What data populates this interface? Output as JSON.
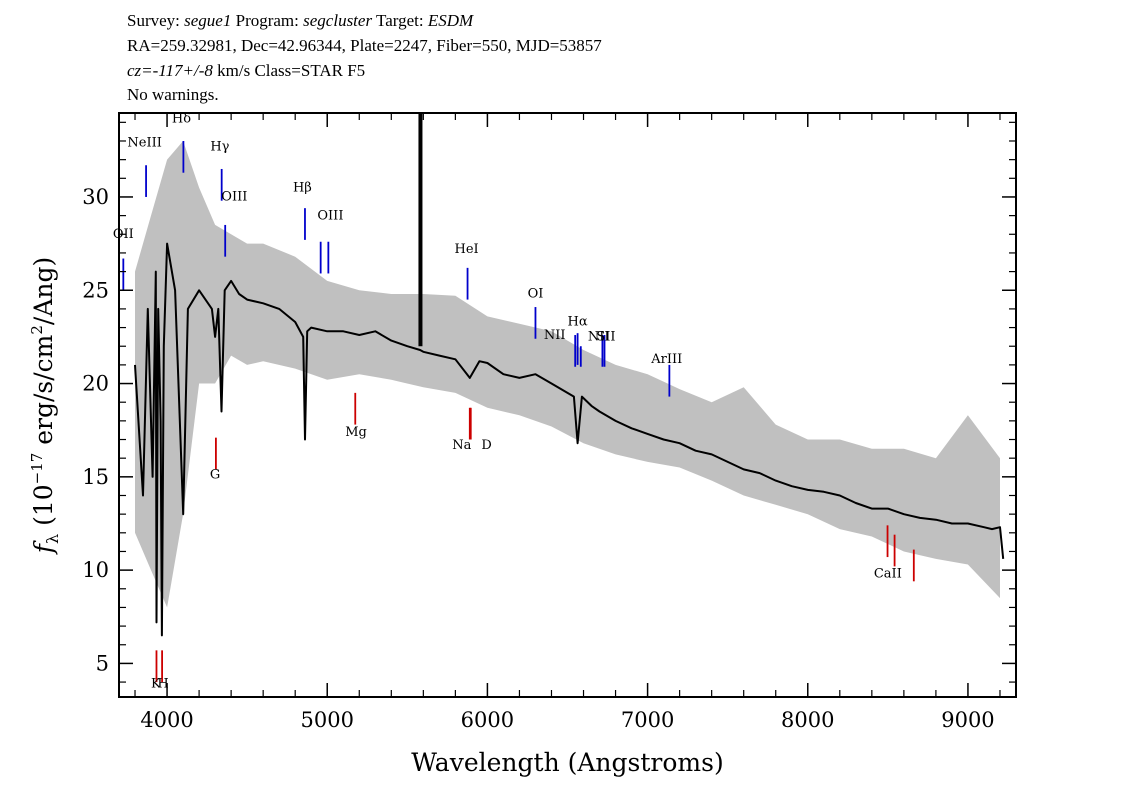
{
  "header": {
    "line1": [
      {
        "text": "Survey: ",
        "italic": false
      },
      {
        "text": "segue1",
        "italic": true
      },
      {
        "text": " Program: ",
        "italic": false
      },
      {
        "text": "segcluster",
        "italic": true
      },
      {
        "text": " Target: ",
        "italic": false
      },
      {
        "text": "ESDM",
        "italic": true
      }
    ],
    "line2": "RA=259.32981, Dec=42.96344, Plate=2247, Fiber=550, MJD=53857",
    "line3": [
      {
        "text": "cz=-117+/-8",
        "italic": true
      },
      {
        "text": " km/s Class=STAR F5",
        "italic": false
      }
    ],
    "line4": "No warnings."
  },
  "chart_data": {
    "type": "line",
    "xlabel": "Wavelength (Angstroms)",
    "ylabel": "f_λ (10^-17 erg/s/cm^2/Ang)",
    "xlim": [
      3700,
      9300
    ],
    "ylim": [
      3.2,
      34.5
    ],
    "xticks": [
      4000,
      5000,
      6000,
      7000,
      8000,
      9000
    ],
    "yticks": [
      5,
      10,
      15,
      20,
      25,
      30
    ],
    "colors": {
      "spectrum": "#000000",
      "noise": "#c0c0c0",
      "emission": "#0000cc",
      "absorption": "#cc0000"
    },
    "series": [
      {
        "kind": "spectrum",
        "x": [
          3800,
          3850,
          3880,
          3910,
          3930,
          3934,
          3945,
          3960,
          3968,
          3980,
          4000,
          4050,
          4101,
          4130,
          4200,
          4280,
          4300,
          4320,
          4340,
          4360,
          4400,
          4450,
          4500,
          4600,
          4700,
          4800,
          4850,
          4861,
          4875,
          4900,
          5000,
          5100,
          5200,
          5300,
          5400,
          5500,
          5580,
          5600,
          5700,
          5800,
          5890,
          5950,
          6000,
          6100,
          6200,
          6300,
          6400,
          6500,
          6540,
          6563,
          6590,
          6650,
          6700,
          6800,
          6900,
          7000,
          7100,
          7200,
          7300,
          7400,
          7500,
          7600,
          7700,
          7800,
          7900,
          8000,
          8100,
          8200,
          8300,
          8400,
          8500,
          8600,
          8700,
          8800,
          8900,
          9000,
          9100,
          9150,
          9200,
          9220
        ],
        "y": [
          21,
          14,
          24,
          15,
          26,
          7.2,
          24,
          18,
          6.5,
          22,
          27.5,
          25,
          13,
          24,
          25,
          24,
          22.5,
          24,
          18.5,
          25,
          25.5,
          24.8,
          24.5,
          24.3,
          24,
          23.3,
          22.5,
          17,
          22.8,
          23,
          22.8,
          22.8,
          22.6,
          22.8,
          22.3,
          22,
          21.8,
          21.7,
          21.5,
          21.3,
          20.3,
          21.2,
          21.1,
          20.5,
          20.3,
          20.5,
          20,
          19.5,
          19.3,
          16.8,
          19.3,
          18.8,
          18.5,
          18,
          17.6,
          17.3,
          17,
          16.8,
          16.4,
          16.2,
          15.8,
          15.4,
          15.2,
          14.8,
          14.5,
          14.3,
          14.2,
          14,
          13.6,
          13.3,
          13.3,
          13,
          12.8,
          12.7,
          12.5,
          12.5,
          12.3,
          12.2,
          12.3,
          10.6
        ]
      },
      {
        "kind": "noise",
        "x": [
          3800,
          3900,
          4000,
          4100,
          4200,
          4300,
          4400,
          4500,
          4600,
          4800,
          5000,
          5200,
          5400,
          5600,
          5800,
          6000,
          6200,
          6400,
          6600,
          6800,
          7000,
          7200,
          7400,
          7600,
          7800,
          8000,
          8200,
          8400,
          8600,
          8800,
          9000,
          9200
        ],
        "upper": [
          26,
          29,
          32,
          33,
          30.5,
          28.5,
          28,
          27.5,
          27.5,
          26.8,
          25.5,
          25,
          24.8,
          24.8,
          24.7,
          23.6,
          23.2,
          22.8,
          21.8,
          21,
          20.5,
          19.7,
          19,
          19.8,
          17.8,
          17,
          17,
          16.5,
          16.5,
          16,
          18.3,
          16
        ],
        "lower": [
          12,
          10,
          8,
          13,
          20,
          20,
          21.5,
          21,
          21.2,
          20.8,
          20.2,
          20.5,
          20.2,
          19.8,
          19.5,
          18.7,
          18.3,
          17.7,
          16.8,
          16.2,
          15.8,
          15.5,
          14.8,
          14,
          13.5,
          13,
          12.2,
          11.8,
          11,
          10.6,
          10.3,
          8.5
        ]
      }
    ],
    "emission_lines": [
      {
        "label": "OII",
        "x": 3727,
        "y0": 25.0,
        "y1": 26.7,
        "tx": 3727,
        "ty": 27.8
      },
      {
        "label": "NeIII",
        "x": 3869,
        "y0": 30.0,
        "y1": 31.7,
        "tx": 3860,
        "ty": 32.7
      },
      {
        "label": "Hδ",
        "x": 4102,
        "y0": 31.3,
        "y1": 33.0,
        "tx": 4090,
        "ty": 34.0
      },
      {
        "label": "Hγ",
        "x": 4341,
        "y0": 29.8,
        "y1": 31.5,
        "tx": 4330,
        "ty": 32.5
      },
      {
        "label": "OIII",
        "x": 4363,
        "y0": 26.8,
        "y1": 28.5,
        "tx": 4420,
        "ty": 29.8
      },
      {
        "label": "Hβ",
        "x": 4861,
        "y0": 27.7,
        "y1": 29.4,
        "tx": 4845,
        "ty": 30.3
      },
      {
        "label": "OIII",
        "x": 4959,
        "y0": 25.9,
        "y1": 27.6,
        "tx": 5020,
        "ty": 28.8
      },
      {
        "label": "",
        "x": 5007,
        "y0": 25.9,
        "y1": 27.6,
        "tx": 5007,
        "ty": 28.8
      },
      {
        "label": "HeI",
        "x": 5876,
        "y0": 24.5,
        "y1": 26.2,
        "tx": 5870,
        "ty": 27.0
      },
      {
        "label": "OI",
        "x": 6300,
        "y0": 22.4,
        "y1": 24.1,
        "tx": 6300,
        "ty": 24.6
      },
      {
        "label": "NII",
        "x": 6548,
        "y0": 20.9,
        "y1": 22.6,
        "tx": 6420,
        "ty": 22.4
      },
      {
        "label": "Hα",
        "x": 6563,
        "y0": 21.0,
        "y1": 22.7,
        "tx": 6563,
        "ty": 23.1
      },
      {
        "label": "",
        "x": 6583,
        "y0": 20.9,
        "y1": 22.0,
        "tx": 6583,
        "ty": 22.0
      },
      {
        "label": "NII",
        "x": 6718,
        "y0": 20.9,
        "y1": 22.6,
        "tx": 6695,
        "ty": 22.3
      },
      {
        "label": "SII",
        "x": 6731,
        "y0": 20.9,
        "y1": 22.6,
        "tx": 6740,
        "ty": 22.3
      },
      {
        "label": "ArIII",
        "x": 7136,
        "y0": 19.3,
        "y1": 21.0,
        "tx": 7120,
        "ty": 21.1
      }
    ],
    "absorption_lines": [
      {
        "label": "K",
        "x": 3934,
        "y0": 4.0,
        "y1": 5.7,
        "tx": 3930,
        "ty": 3.7
      },
      {
        "label": "H",
        "x": 3969,
        "y0": 4.0,
        "y1": 5.7,
        "tx": 3975,
        "ty": 3.7
      },
      {
        "label": "G",
        "x": 4305,
        "y0": 15.4,
        "y1": 17.1,
        "tx": 4300,
        "ty": 14.9
      },
      {
        "label": "Mg",
        "x": 5175,
        "y0": 17.8,
        "y1": 19.5,
        "tx": 5180,
        "ty": 17.2
      },
      {
        "label": "Na",
        "x": 5890,
        "y0": 17.0,
        "y1": 18.7,
        "tx": 5840,
        "ty": 16.5
      },
      {
        "label": "D",
        "x": 5896,
        "y0": 17.0,
        "y1": 18.7,
        "tx": 5995,
        "ty": 16.5
      },
      {
        "label": "CaII",
        "x": 8498,
        "y0": 10.7,
        "y1": 12.4,
        "tx": 8500,
        "ty": 9.6
      },
      {
        "label": "",
        "x": 8542,
        "y0": 10.2,
        "y1": 11.9,
        "tx": 8542,
        "ty": 9.6
      },
      {
        "label": "",
        "x": 8662,
        "y0": 9.4,
        "y1": 11.1,
        "tx": 8662,
        "ty": 9.6
      }
    ]
  }
}
